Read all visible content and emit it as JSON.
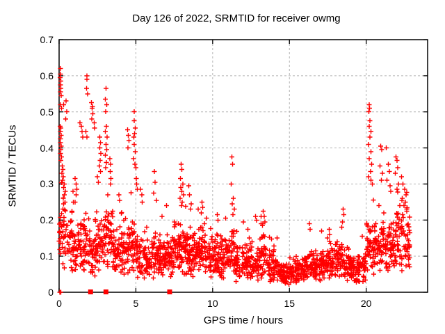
{
  "chart_data": {
    "type": "scatter",
    "title": "Day 126 of 2022, SRMTID for receiver owmg",
    "xlabel": "GPS time / hours",
    "ylabel": "SRMTID / TECUs",
    "xlim": [
      0,
      24
    ],
    "ylim": [
      0,
      0.7
    ],
    "xtick_values": [
      0,
      5,
      10,
      15,
      20
    ],
    "xtick_labels": [
      "0",
      "5",
      "10",
      "15",
      "20"
    ],
    "ytick_values": [
      0,
      0.1,
      0.2,
      0.3,
      0.4,
      0.5,
      0.6,
      0.7
    ],
    "ytick_labels": [
      "0",
      "0.1",
      "0.2",
      "0.3",
      "0.4",
      "0.5",
      "0.6",
      "0.7"
    ],
    "grid": "on",
    "grid_style": "dashed",
    "grid_color": "#b4b4b4",
    "frame_color": "#000000",
    "marker": "plus",
    "marker_color": "#ff0000",
    "marker_size": 7,
    "series_name": "SRMTID",
    "peak_points": [
      [
        0.08,
        0.62
      ],
      [
        0.1,
        0.605
      ],
      [
        0.07,
        0.595
      ],
      [
        0.12,
        0.585
      ],
      [
        0.09,
        0.575
      ],
      [
        0.11,
        0.565
      ],
      [
        0.08,
        0.555
      ],
      [
        0.13,
        0.545
      ],
      [
        0.1,
        0.52
      ],
      [
        0.15,
        0.51
      ],
      [
        0.07,
        0.46
      ],
      [
        0.12,
        0.455
      ],
      [
        0.09,
        0.445
      ],
      [
        0.14,
        0.435
      ],
      [
        0.1,
        0.425
      ],
      [
        0.08,
        0.415
      ],
      [
        0.13,
        0.405
      ],
      [
        0.11,
        0.395
      ],
      [
        0.09,
        0.385
      ],
      [
        0.15,
        0.375
      ],
      [
        0.12,
        0.365
      ],
      [
        0.3,
        0.52
      ],
      [
        0.45,
        0.53
      ],
      [
        0.5,
        0.5
      ],
      [
        0.42,
        0.48
      ],
      [
        0.2,
        0.35
      ],
      [
        0.25,
        0.34
      ],
      [
        0.18,
        0.33
      ],
      [
        0.28,
        0.32
      ],
      [
        0.22,
        0.31
      ],
      [
        0.35,
        0.3
      ],
      [
        0.3,
        0.29
      ],
      [
        0.4,
        0.28
      ],
      [
        0.33,
        0.27
      ],
      [
        0.27,
        0.26
      ],
      [
        0.38,
        0.25
      ],
      [
        0.9,
        0.28
      ],
      [
        1.05,
        0.315
      ],
      [
        1.1,
        0.3
      ],
      [
        1.15,
        0.285
      ],
      [
        1.1,
        0.27
      ],
      [
        1.05,
        0.25
      ],
      [
        1.35,
        0.47
      ],
      [
        1.45,
        0.46
      ],
      [
        1.5,
        0.445
      ],
      [
        1.55,
        0.43
      ],
      [
        1.8,
        0.6
      ],
      [
        1.82,
        0.59
      ],
      [
        1.78,
        0.565
      ],
      [
        1.85,
        0.55
      ],
      [
        1.75,
        0.445
      ],
      [
        1.8,
        0.43
      ],
      [
        2.1,
        0.525
      ],
      [
        2.18,
        0.515
      ],
      [
        2.14,
        0.51
      ],
      [
        2.2,
        0.495
      ],
      [
        2.12,
        0.48
      ],
      [
        2.28,
        0.47
      ],
      [
        2.3,
        0.455
      ],
      [
        2.5,
        0.32
      ],
      [
        2.55,
        0.305
      ],
      [
        2.65,
        0.43
      ],
      [
        2.7,
        0.415
      ],
      [
        2.66,
        0.4
      ],
      [
        2.72,
        0.385
      ],
      [
        2.68,
        0.365
      ],
      [
        2.63,
        0.35
      ],
      [
        2.7,
        0.335
      ],
      [
        3.05,
        0.565
      ],
      [
        3.0,
        0.535
      ],
      [
        3.1,
        0.52
      ],
      [
        3.04,
        0.5
      ],
      [
        3.08,
        0.46
      ],
      [
        3.02,
        0.445
      ],
      [
        3.12,
        0.43
      ],
      [
        3.06,
        0.41
      ],
      [
        3.1,
        0.395
      ],
      [
        3.0,
        0.38
      ],
      [
        3.07,
        0.36
      ],
      [
        3.03,
        0.345
      ],
      [
        3.3,
        0.37
      ],
      [
        3.35,
        0.355
      ],
      [
        3.32,
        0.335
      ],
      [
        3.38,
        0.315
      ],
      [
        3.34,
        0.3
      ],
      [
        3.9,
        0.27
      ],
      [
        3.95,
        0.255
      ],
      [
        4.45,
        0.45
      ],
      [
        4.5,
        0.435
      ],
      [
        4.55,
        0.42
      ],
      [
        4.48,
        0.4
      ],
      [
        4.9,
        0.5
      ],
      [
        4.88,
        0.475
      ],
      [
        4.95,
        0.455
      ],
      [
        4.92,
        0.44
      ],
      [
        4.86,
        0.43
      ],
      [
        4.9,
        0.41
      ],
      [
        4.96,
        0.39
      ],
      [
        4.85,
        0.37
      ],
      [
        4.93,
        0.355
      ],
      [
        5.0,
        0.345
      ],
      [
        5.02,
        0.315
      ],
      [
        5.06,
        0.3
      ],
      [
        5.1,
        0.285
      ],
      [
        5.3,
        0.285
      ],
      [
        5.38,
        0.27
      ],
      [
        5.42,
        0.25
      ],
      [
        6.2,
        0.335
      ],
      [
        6.25,
        0.305
      ],
      [
        6.15,
        0.275
      ],
      [
        6.35,
        0.255
      ],
      [
        6.7,
        0.21
      ],
      [
        7.0,
        0.24
      ],
      [
        7.95,
        0.355
      ],
      [
        8.0,
        0.34
      ],
      [
        7.9,
        0.315
      ],
      [
        8.05,
        0.3
      ],
      [
        7.92,
        0.29
      ],
      [
        8.0,
        0.28
      ],
      [
        8.1,
        0.27
      ],
      [
        7.88,
        0.26
      ],
      [
        8.02,
        0.25
      ],
      [
        7.97,
        0.24
      ],
      [
        8.45,
        0.295
      ],
      [
        8.5,
        0.27
      ],
      [
        8.6,
        0.245
      ],
      [
        8.55,
        0.23
      ],
      [
        9.05,
        0.23
      ],
      [
        9.3,
        0.25
      ],
      [
        9.35,
        0.235
      ],
      [
        9.25,
        0.22
      ],
      [
        9.6,
        0.205
      ],
      [
        10.3,
        0.215
      ],
      [
        10.35,
        0.2
      ],
      [
        10.85,
        0.205
      ],
      [
        11.25,
        0.375
      ],
      [
        11.3,
        0.355
      ],
      [
        11.2,
        0.3
      ],
      [
        11.35,
        0.26
      ],
      [
        11.28,
        0.245
      ],
      [
        11.4,
        0.23
      ],
      [
        11.32,
        0.215
      ],
      [
        12.0,
        0.195
      ],
      [
        12.3,
        0.175
      ],
      [
        12.8,
        0.21
      ],
      [
        12.85,
        0.2
      ],
      [
        13.15,
        0.21
      ],
      [
        13.3,
        0.225
      ],
      [
        13.35,
        0.21
      ],
      [
        13.4,
        0.195
      ],
      [
        13.25,
        0.185
      ],
      [
        14.2,
        0.15
      ],
      [
        16.3,
        0.19
      ],
      [
        16.35,
        0.175
      ],
      [
        17.1,
        0.17
      ],
      [
        17.6,
        0.175
      ],
      [
        18.5,
        0.23
      ],
      [
        18.55,
        0.215
      ],
      [
        18.45,
        0.195
      ],
      [
        19.75,
        0.155
      ],
      [
        20.2,
        0.52
      ],
      [
        20.22,
        0.51
      ],
      [
        20.18,
        0.5
      ],
      [
        20.25,
        0.475
      ],
      [
        20.2,
        0.46
      ],
      [
        20.3,
        0.445
      ],
      [
        20.24,
        0.43
      ],
      [
        20.15,
        0.41
      ],
      [
        20.3,
        0.39
      ],
      [
        20.2,
        0.37
      ],
      [
        20.35,
        0.355
      ],
      [
        20.28,
        0.335
      ],
      [
        20.15,
        0.32
      ],
      [
        20.3,
        0.31
      ],
      [
        20.4,
        0.3
      ],
      [
        20.95,
        0.405
      ],
      [
        21.0,
        0.395
      ],
      [
        20.9,
        0.35
      ],
      [
        21.05,
        0.33
      ],
      [
        20.98,
        0.31
      ],
      [
        21.3,
        0.4
      ],
      [
        21.45,
        0.355
      ],
      [
        21.5,
        0.335
      ],
      [
        21.35,
        0.31
      ],
      [
        21.55,
        0.295
      ],
      [
        21.6,
        0.28
      ],
      [
        21.95,
        0.375
      ],
      [
        22.0,
        0.365
      ],
      [
        22.05,
        0.345
      ],
      [
        21.9,
        0.33
      ],
      [
        22.1,
        0.3
      ],
      [
        22.0,
        0.285
      ],
      [
        22.3,
        0.32
      ],
      [
        22.4,
        0.3
      ],
      [
        22.5,
        0.285
      ],
      [
        22.6,
        0.27
      ],
      [
        22.35,
        0.26
      ],
      [
        22.55,
        0.25
      ],
      [
        22.45,
        0.24
      ],
      [
        22.65,
        0.23
      ]
    ],
    "baseline_bins": [
      [
        0.0,
        0.5,
        40,
        0.05,
        0.17,
        0.32
      ],
      [
        0.5,
        1.0,
        35,
        0.06,
        0.14,
        0.27
      ],
      [
        1.0,
        1.5,
        38,
        0.05,
        0.12,
        0.22
      ],
      [
        1.5,
        2.0,
        38,
        0.04,
        0.12,
        0.24
      ],
      [
        2.0,
        2.5,
        42,
        0.03,
        0.1,
        0.28
      ],
      [
        2.5,
        3.0,
        38,
        0.05,
        0.13,
        0.28
      ],
      [
        3.0,
        3.5,
        42,
        0.05,
        0.15,
        0.32
      ],
      [
        3.5,
        4.0,
        38,
        0.04,
        0.12,
        0.24
      ],
      [
        4.0,
        4.5,
        40,
        0.05,
        0.13,
        0.27
      ],
      [
        4.5,
        5.0,
        38,
        0.05,
        0.14,
        0.28
      ],
      [
        5.0,
        5.5,
        38,
        0.04,
        0.1,
        0.21
      ],
      [
        5.5,
        6.0,
        38,
        0.04,
        0.09,
        0.18
      ],
      [
        6.0,
        6.5,
        42,
        0.04,
        0.1,
        0.21
      ],
      [
        6.5,
        7.0,
        42,
        0.04,
        0.09,
        0.18
      ],
      [
        7.0,
        7.5,
        46,
        0.04,
        0.1,
        0.2
      ],
      [
        7.5,
        8.0,
        46,
        0.05,
        0.12,
        0.24
      ],
      [
        8.0,
        8.5,
        46,
        0.05,
        0.12,
        0.26
      ],
      [
        8.5,
        9.0,
        42,
        0.04,
        0.1,
        0.2
      ],
      [
        9.0,
        9.5,
        42,
        0.04,
        0.11,
        0.21
      ],
      [
        9.5,
        10.0,
        42,
        0.04,
        0.1,
        0.18
      ],
      [
        10.0,
        10.5,
        42,
        0.04,
        0.09,
        0.17
      ],
      [
        10.5,
        11.0,
        42,
        0.04,
        0.1,
        0.19
      ],
      [
        11.0,
        11.5,
        42,
        0.04,
        0.11,
        0.22
      ],
      [
        11.5,
        12.0,
        42,
        0.03,
        0.09,
        0.17
      ],
      [
        12.0,
        12.5,
        42,
        0.03,
        0.08,
        0.15
      ],
      [
        12.5,
        13.0,
        42,
        0.03,
        0.07,
        0.14
      ],
      [
        13.0,
        13.5,
        42,
        0.04,
        0.1,
        0.19
      ],
      [
        13.5,
        14.0,
        40,
        0.03,
        0.08,
        0.16
      ],
      [
        14.0,
        14.5,
        40,
        0.03,
        0.06,
        0.12
      ],
      [
        14.5,
        15.0,
        40,
        0.02,
        0.05,
        0.1
      ],
      [
        15.0,
        15.5,
        42,
        0.02,
        0.05,
        0.11
      ],
      [
        15.5,
        16.0,
        40,
        0.03,
        0.06,
        0.12
      ],
      [
        16.0,
        16.5,
        42,
        0.03,
        0.07,
        0.14
      ],
      [
        16.5,
        17.0,
        42,
        0.03,
        0.07,
        0.15
      ],
      [
        17.0,
        17.5,
        42,
        0.03,
        0.08,
        0.16
      ],
      [
        17.5,
        18.0,
        42,
        0.03,
        0.08,
        0.16
      ],
      [
        18.0,
        18.5,
        42,
        0.04,
        0.09,
        0.18
      ],
      [
        18.5,
        19.0,
        40,
        0.03,
        0.07,
        0.14
      ],
      [
        19.0,
        19.5,
        40,
        0.02,
        0.06,
        0.12
      ],
      [
        19.5,
        20.0,
        36,
        0.03,
        0.07,
        0.15
      ],
      [
        20.0,
        20.5,
        40,
        0.05,
        0.12,
        0.28
      ],
      [
        20.5,
        21.0,
        40,
        0.05,
        0.12,
        0.24
      ],
      [
        21.0,
        21.5,
        40,
        0.06,
        0.14,
        0.28
      ],
      [
        21.5,
        22.0,
        40,
        0.05,
        0.13,
        0.26
      ],
      [
        22.0,
        22.5,
        40,
        0.06,
        0.15,
        0.3
      ],
      [
        22.5,
        22.85,
        30,
        0.06,
        0.14,
        0.28
      ]
    ],
    "zero_markers": {
      "square_marker_x": [
        2.05,
        3.05,
        7.2
      ],
      "plus_marker_x": [
        0.05,
        0.12
      ]
    },
    "seed": 126
  }
}
